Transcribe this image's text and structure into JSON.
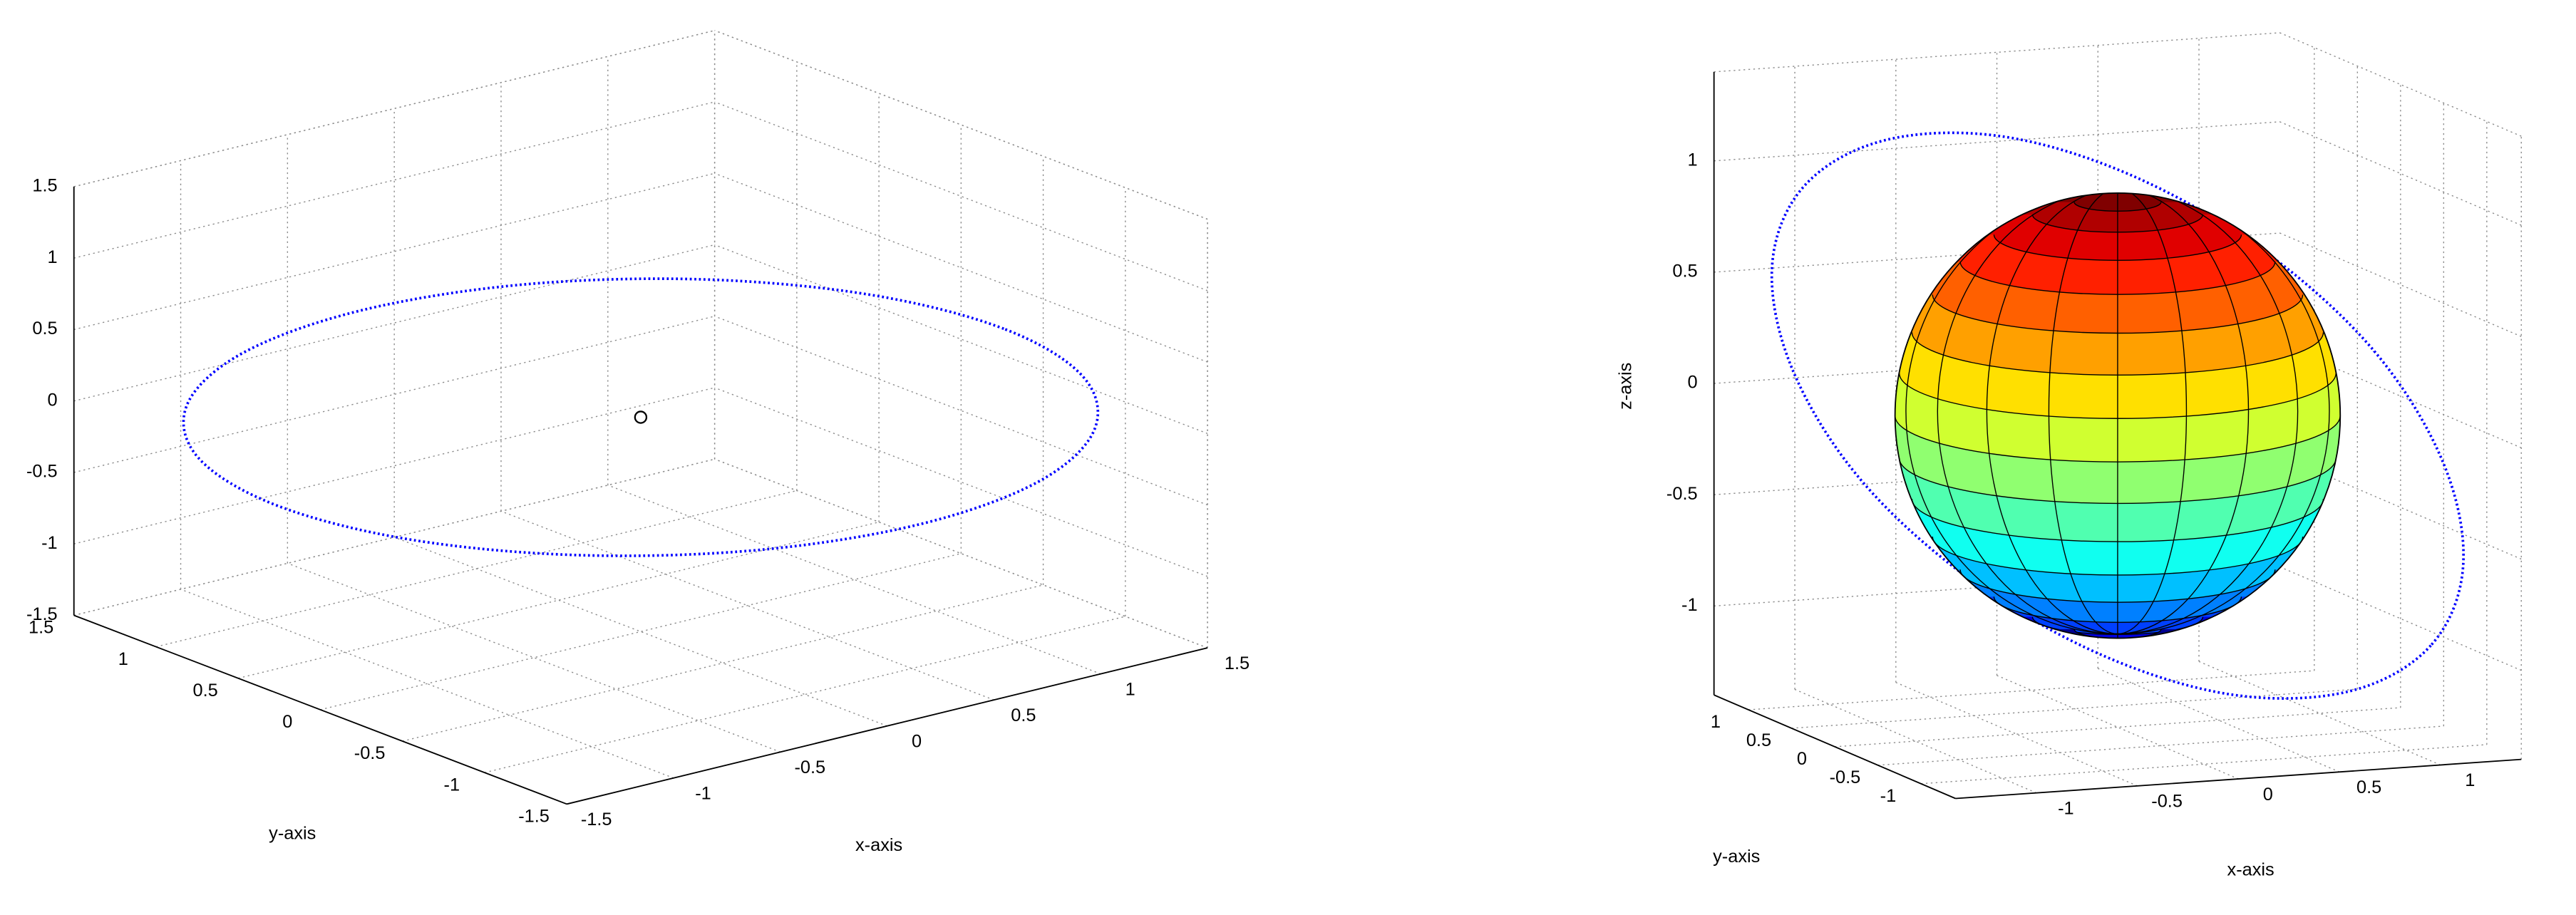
{
  "chart_data": [
    {
      "type": "scatter3d",
      "xlabel": "x-axis",
      "ylabel": "y-axis",
      "xlim": [
        -1.5,
        1.5
      ],
      "ylim": [
        -1.5,
        1.5
      ],
      "zlim": [
        -1.5,
        1.5
      ],
      "xticks": [
        -1.5,
        -1,
        -0.5,
        0,
        0.5,
        1,
        1.5
      ],
      "yticks": [
        -1.5,
        -1,
        -0.5,
        0,
        0.5,
        1,
        1.5
      ],
      "zticks": [
        -1.5,
        -1,
        -0.5,
        0,
        0.5,
        1,
        1.5
      ],
      "grid": true,
      "series": [
        {
          "marker": "dot",
          "color": "#0000ff",
          "x": [
            1.7,
            1.57,
            1.2,
            0.65,
            0,
            -0.65,
            -1.2,
            -1.57,
            -1.7,
            -1.57,
            -1.2,
            -0.65,
            0,
            0.65,
            1.2,
            1.57
          ],
          "y": [
            0,
            0.65,
            1.2,
            1.57,
            1.7,
            1.57,
            1.2,
            0.65,
            0,
            -0.65,
            -1.2,
            -1.57,
            -1.7,
            -1.57,
            -1.2,
            -0.65
          ],
          "z": [
            0,
            0,
            0,
            0,
            0,
            0,
            0,
            0,
            0,
            0,
            0,
            0,
            0,
            0,
            0,
            0
          ]
        },
        {
          "marker": "circle",
          "color": "#000000",
          "x": [
            0
          ],
          "y": [
            0
          ],
          "z": [
            0
          ]
        }
      ]
    },
    {
      "type": "scatter3d",
      "xlabel": "x-axis",
      "ylabel": "y-axis",
      "zlabel": "z-axis",
      "xlim": [
        -1.4,
        1.4
      ],
      "ylim": [
        -1.4,
        1.4
      ],
      "zlim": [
        -1.4,
        1.4
      ],
      "xticks": [
        -1,
        -0.5,
        0,
        0.5,
        1
      ],
      "yticks": [
        -1,
        -0.5,
        0,
        0.5,
        1
      ],
      "zticks": [
        -1,
        -0.5,
        0,
        0.5,
        1
      ],
      "grid": true,
      "series": [
        {
          "marker": "dot",
          "color": "#0000ff",
          "x": [
            1.55,
            1.15,
            0.57,
            -0.08,
            -0.73,
            -1.27,
            -1.61,
            -1.71,
            -1.55,
            -1.15,
            -0.57,
            0.08,
            0.73,
            1.27,
            1.61,
            1.71
          ],
          "y": [
            0,
            0,
            0,
            0,
            0,
            0,
            0,
            0,
            0,
            0,
            0,
            0,
            0,
            0,
            0,
            0
          ],
          "z": [
            -1.13,
            -1.31,
            -1.29,
            -1.07,
            -0.69,
            -0.21,
            0.31,
            0.78,
            1.13,
            1.31,
            1.29,
            1.07,
            0.69,
            0.21,
            -0.31,
            -0.78
          ]
        }
      ],
      "sphere": {
        "center": [
          0,
          0,
          0
        ],
        "radius": 1,
        "colors": [
          "#800000",
          "#b00000",
          "#e00000",
          "#ff2000",
          "#ff6000",
          "#ffa000",
          "#ffe000",
          "#d0ff30",
          "#90ff70",
          "#50ffb0",
          "#10fff0",
          "#00c0ff",
          "#0080ff",
          "#0040ff",
          "#0000e0",
          "#000090"
        ]
      }
    }
  ]
}
